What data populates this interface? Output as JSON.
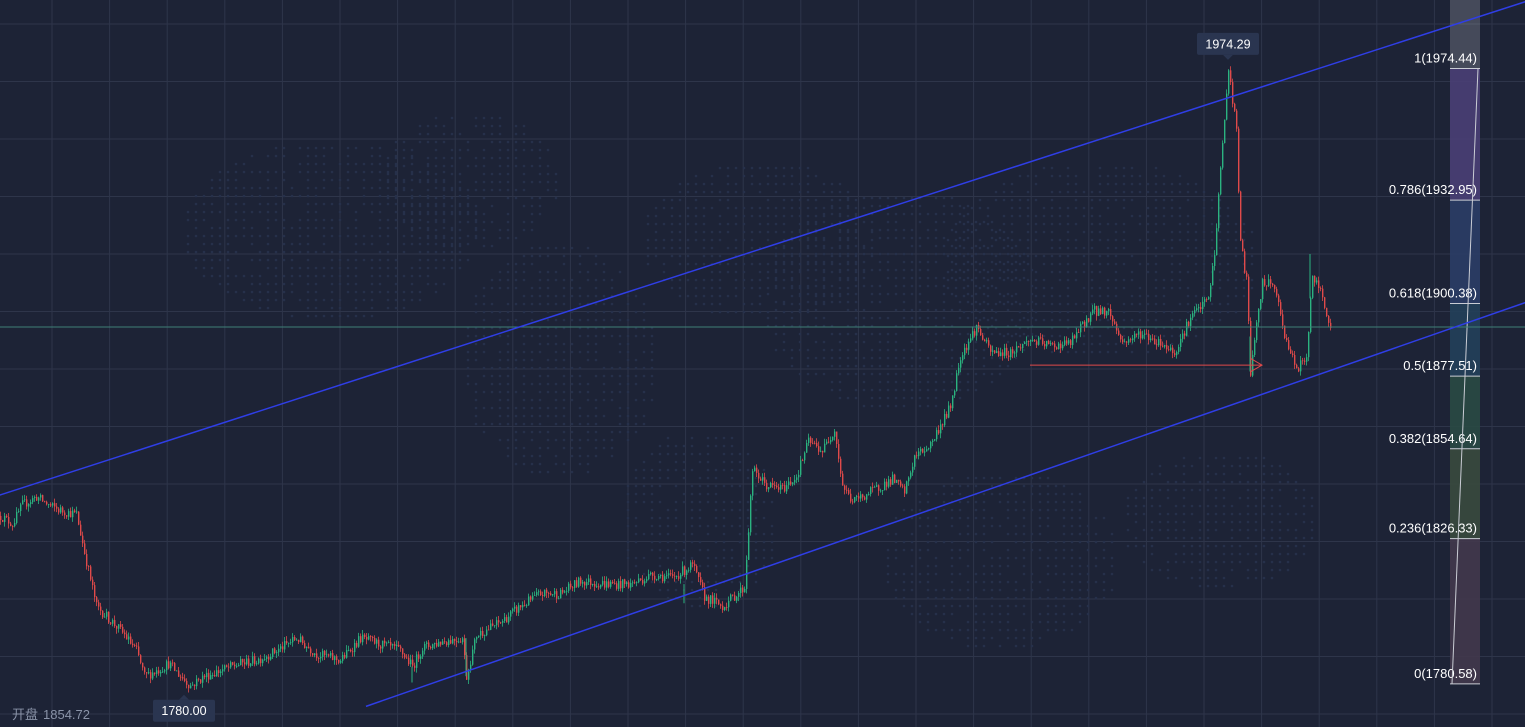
{
  "chart_data": {
    "type": "candlestick",
    "title": "",
    "xlabel": "",
    "ylabel": "",
    "grid": true,
    "ylim": [
      1767,
      1996
    ],
    "colors": {
      "background": "#1d2336",
      "grid": "#2e354a",
      "up": "#2bb380",
      "down": "#e04a4a",
      "channel": "#2f3ee6",
      "fib_line": "#c9ccd4",
      "arrow": "#e04a4a",
      "current_price_line": "#3e7f77",
      "label_bg": "#2a3550",
      "label_text": "#ffffff"
    },
    "price_path": {
      "description_units": "bar index (0-1330) vs price",
      "anchors": [
        [
          0,
          1833.5
        ],
        [
          12,
          1831
        ],
        [
          22,
          1837
        ],
        [
          36,
          1839.5
        ],
        [
          50,
          1836.5
        ],
        [
          62,
          1835
        ],
        [
          76,
          1834
        ],
        [
          84,
          1822
        ],
        [
          96,
          1805
        ],
        [
          112,
          1800
        ],
        [
          124,
          1796
        ],
        [
          136,
          1791
        ],
        [
          144,
          1783
        ],
        [
          158,
          1785
        ],
        [
          168,
          1787
        ],
        [
          180,
          1783
        ],
        [
          190,
          1780
        ],
        [
          204,
          1783
        ],
        [
          222,
          1785
        ],
        [
          240,
          1787
        ],
        [
          256,
          1788
        ],
        [
          276,
          1791
        ],
        [
          296,
          1795
        ],
        [
          316,
          1790
        ],
        [
          340,
          1788
        ],
        [
          360,
          1795
        ],
        [
          380,
          1793
        ],
        [
          400,
          1791
        ],
        [
          412,
          1786
        ],
        [
          422,
          1792
        ],
        [
          442,
          1794
        ],
        [
          462,
          1795
        ],
        [
          466,
          1783
        ],
        [
          476,
          1796
        ],
        [
          500,
          1800
        ],
        [
          520,
          1805
        ],
        [
          540,
          1809
        ],
        [
          560,
          1809
        ],
        [
          580,
          1813
        ],
        [
          606,
          1812
        ],
        [
          630,
          1812
        ],
        [
          652,
          1815
        ],
        [
          672,
          1814
        ],
        [
          692,
          1818
        ],
        [
          704,
          1808
        ],
        [
          722,
          1805
        ],
        [
          744,
          1811
        ],
        [
          752,
          1848
        ],
        [
          766,
          1843
        ],
        [
          782,
          1842
        ],
        [
          796,
          1846
        ],
        [
          808,
          1857
        ],
        [
          822,
          1854
        ],
        [
          834,
          1861
        ],
        [
          842,
          1843
        ],
        [
          852,
          1838
        ],
        [
          870,
          1841
        ],
        [
          892,
          1845
        ],
        [
          904,
          1841
        ],
        [
          914,
          1852
        ],
        [
          930,
          1856
        ],
        [
          950,
          1868
        ],
        [
          960,
          1884
        ],
        [
          976,
          1893
        ],
        [
          990,
          1885
        ],
        [
          1010,
          1885
        ],
        [
          1030,
          1889
        ],
        [
          1050,
          1887
        ],
        [
          1070,
          1888
        ],
        [
          1092,
          1898
        ],
        [
          1108,
          1898
        ],
        [
          1122,
          1888
        ],
        [
          1140,
          1891
        ],
        [
          1160,
          1888
        ],
        [
          1174,
          1885
        ],
        [
          1190,
          1896
        ],
        [
          1208,
          1902
        ],
        [
          1214,
          1916
        ],
        [
          1220,
          1943
        ],
        [
          1228,
          1974.29
        ],
        [
          1236,
          1955
        ],
        [
          1240,
          1919
        ],
        [
          1246,
          1908
        ],
        [
          1250,
          1879
        ],
        [
          1262,
          1907
        ],
        [
          1274,
          1906
        ],
        [
          1282,
          1893
        ],
        [
          1296,
          1879
        ],
        [
          1306,
          1884
        ],
        [
          1312,
          1909
        ],
        [
          1322,
          1903
        ],
        [
          1330,
          1893
        ]
      ]
    },
    "annotations": {
      "high_label": "1974.29",
      "low_label": "1780.00",
      "high_price": 1974.29,
      "low_price": 1780.0,
      "high_bar": 1228,
      "low_bar": 190,
      "current_price": 1893
    },
    "channel_lines": [
      {
        "name": "",
        "points": [
          [
            -40,
            1836
          ],
          [
            1560,
            1999
          ]
        ]
      },
      {
        "name": "",
        "points": [
          [
            366,
            1773.5
          ],
          [
            1560,
            1904.5
          ]
        ]
      }
    ],
    "arrow": {
      "from": [
        1030,
        1881
      ],
      "to": [
        1262,
        1881
      ]
    },
    "fibonacci_retracement": {
      "high": 1974.44,
      "low": 1780.58,
      "levels": [
        {
          "ratio": 1,
          "price": 1974.44,
          "label": "1(1974.44)",
          "fill": "#4a3f75"
        },
        {
          "ratio": 0.786,
          "price": 1932.95,
          "label": "0.786(1932.95)",
          "fill": "#2b3d66"
        },
        {
          "ratio": 0.618,
          "price": 1900.38,
          "label": "0.618(1900.38)",
          "fill": "#24405a"
        },
        {
          "ratio": 0.5,
          "price": 1877.51,
          "label": "0.5(1877.51)",
          "fill": "#2a4a44"
        },
        {
          "ratio": 0.382,
          "price": 1854.64,
          "label": "0.382(1854.64)",
          "fill": "#3a4a3e"
        },
        {
          "ratio": 0.236,
          "price": 1826.33,
          "label": "0.236(1826.33)",
          "fill": "#43394d"
        },
        {
          "ratio": 0,
          "price": 1780.58,
          "label": "0(1780.58)",
          "fill": "#4a3a48"
        }
      ]
    }
  },
  "footer": {
    "open_label": "开盘",
    "open_value": "1854.72"
  }
}
